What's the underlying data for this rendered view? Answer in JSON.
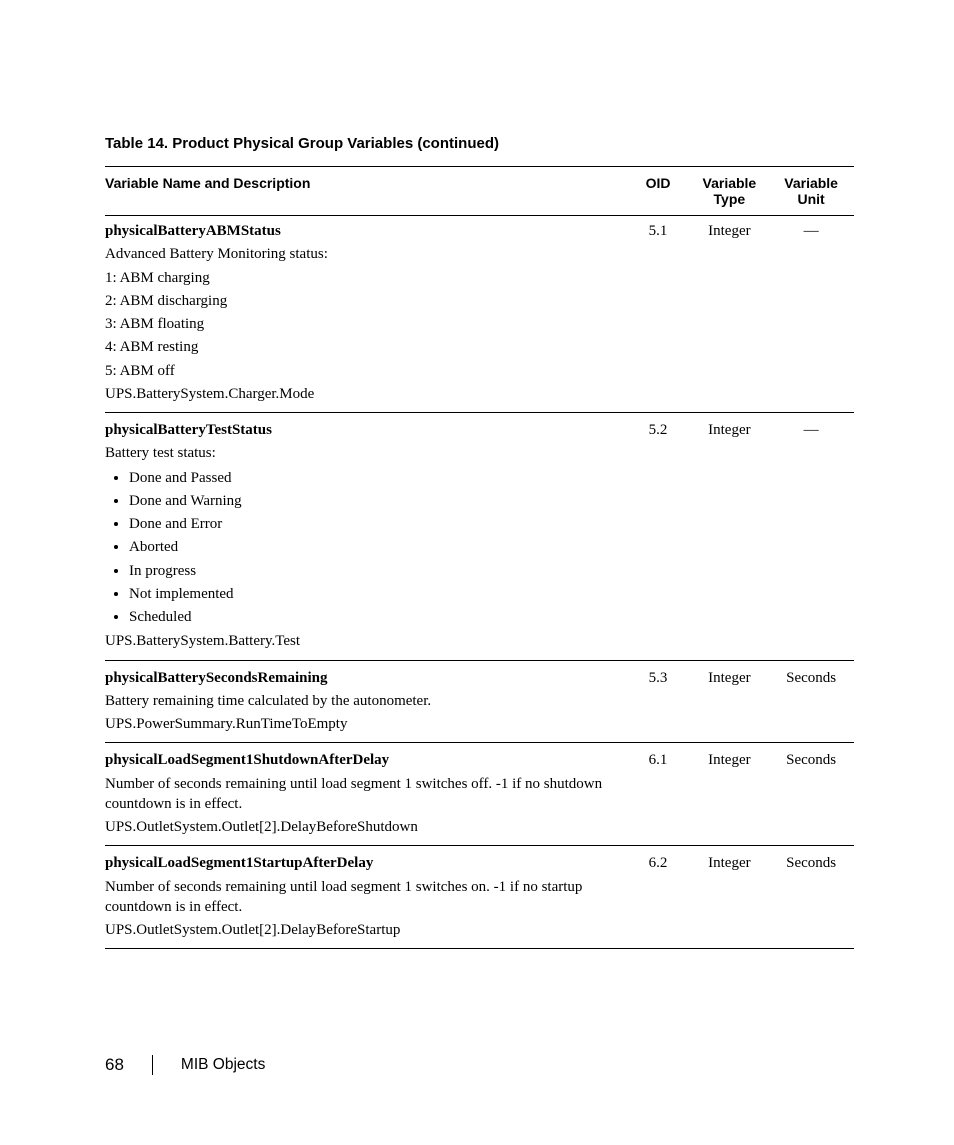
{
  "caption": "Table 14. Product Physical Group Variables (continued)",
  "headers": {
    "name": "Variable Name and Description",
    "oid": "OID",
    "type_l1": "Variable",
    "type_l2": "Type",
    "unit_l1": "Variable",
    "unit_l2": "Unit"
  },
  "rows": [
    {
      "name": "physicalBatteryABMStatus",
      "oid": "5.1",
      "type": "Integer",
      "unit": "—",
      "desc_lines": [
        "Advanced Battery Monitoring status:",
        "1: ABM charging",
        "2: ABM discharging",
        "3: ABM floating",
        "4: ABM resting",
        "5: ABM off",
        "UPS.BatterySystem.Charger.Mode"
      ],
      "bullets": []
    },
    {
      "name": "physicalBatteryTestStatus",
      "oid": "5.2",
      "type": "Integer",
      "unit": "—",
      "desc_lines_before": [
        "Battery test status:"
      ],
      "bullets": [
        "Done and Passed",
        "Done and Warning",
        "Done and Error",
        "Aborted",
        "In progress",
        "Not implemented",
        "Scheduled"
      ],
      "desc_lines_after": [
        "UPS.BatterySystem.Battery.Test"
      ]
    },
    {
      "name": "physicalBatterySecondsRemaining",
      "oid": "5.3",
      "type": "Integer",
      "unit": "Seconds",
      "desc_lines": [
        "Battery remaining time calculated by the autonometer.",
        "UPS.PowerSummary.RunTimeToEmpty"
      ]
    },
    {
      "name": "physicalLoadSegment1ShutdownAfterDelay",
      "oid": "6.1",
      "type": "Integer",
      "unit": "Seconds",
      "desc_lines": [
        "Number of seconds remaining until load segment 1 switches off. -1 if no shutdown countdown is in effect.",
        "UPS.OutletSystem.Outlet[2].DelayBeforeShutdown"
      ]
    },
    {
      "name": "physicalLoadSegment1StartupAfterDelay",
      "oid": "6.2",
      "type": "Integer",
      "unit": "Seconds",
      "desc_lines": [
        "Number of seconds remaining until load segment 1 switches on. -1 if no startup countdown is in effect.",
        "UPS.OutletSystem.Outlet[2].DelayBeforeStartup"
      ]
    }
  ],
  "footer": {
    "page": "68",
    "section": "MIB Objects"
  }
}
